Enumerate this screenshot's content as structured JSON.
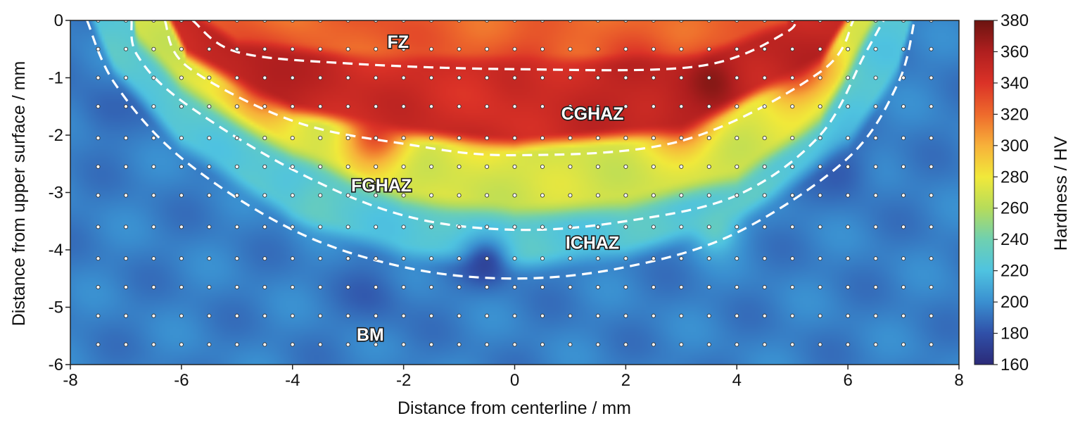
{
  "chart_data": {
    "type": "heatmap",
    "xlabel": "Distance from centerline / mm",
    "ylabel": "Distance from upper surface / mm",
    "colorbar_label": "Hardness / HV",
    "xlim": [
      -8,
      8
    ],
    "ylim": [
      -6,
      0
    ],
    "x_ticks": [
      -8,
      -6,
      -4,
      -2,
      0,
      2,
      4,
      6,
      8
    ],
    "y_ticks": [
      0,
      -1,
      -2,
      -3,
      -4,
      -5,
      -6
    ],
    "colorbar_range": [
      160,
      380
    ],
    "colorbar_ticks": [
      380,
      360,
      340,
      320,
      300,
      280,
      260,
      240,
      220,
      200,
      180,
      160
    ],
    "colormap": [
      "#2b2a78",
      "#3050a8",
      "#3a8fd0",
      "#4fc3e0",
      "#6fd0b0",
      "#b6dc5a",
      "#f1e93a",
      "#f7b13a",
      "#ee6a2c",
      "#db3227",
      "#b01f1f",
      "#6b1410"
    ],
    "base_hardness": 195,
    "measurement_grid": {
      "x_start": -7.5,
      "x_step": 0.5,
      "x_count": 31,
      "y_values": [
        0,
        -0.5,
        -1.0,
        -1.5,
        -2.05,
        -2.55,
        -3.05,
        -3.6,
        -4.15,
        -4.65,
        -5.15,
        -5.65
      ]
    },
    "zones": [
      {
        "label": "FZ",
        "x": -2.1,
        "y": -0.4
      },
      {
        "label": "CGHAZ",
        "x": 1.4,
        "y": -1.65
      },
      {
        "label": "FGHAZ",
        "x": -2.4,
        "y": -2.9
      },
      {
        "label": "ICHAZ",
        "x": 1.4,
        "y": -3.9
      },
      {
        "label": "BM",
        "x": -2.6,
        "y": -5.5
      }
    ],
    "boundaries": [
      {
        "name": "FZ / CGHAZ",
        "points": [
          [
            -5.8,
            0.0
          ],
          [
            -5.0,
            -0.55
          ],
          [
            -3.0,
            -0.75
          ],
          [
            0.0,
            -0.85
          ],
          [
            3.3,
            -0.8
          ],
          [
            4.9,
            -0.2
          ],
          [
            5.0,
            0.1
          ]
        ]
      },
      {
        "name": "CGHAZ / FGHAZ",
        "points": [
          [
            -6.3,
            0.0
          ],
          [
            -5.9,
            -0.8
          ],
          [
            -4.0,
            -1.75
          ],
          [
            -2.0,
            -2.15
          ],
          [
            0.0,
            -2.35
          ],
          [
            3.0,
            -2.1
          ],
          [
            5.5,
            -0.9
          ],
          [
            6.1,
            0.0
          ]
        ]
      },
      {
        "name": "FGHAZ / ICHAZ",
        "points": [
          [
            -6.9,
            0.0
          ],
          [
            -6.8,
            -0.6
          ],
          [
            -6.0,
            -1.4
          ],
          [
            -4.0,
            -2.6
          ],
          [
            -2.0,
            -3.4
          ],
          [
            0.0,
            -3.65
          ],
          [
            2.0,
            -3.5
          ],
          [
            4.0,
            -3.05
          ],
          [
            5.5,
            -2.0
          ],
          [
            6.3,
            -0.6
          ],
          [
            6.7,
            0.1
          ]
        ]
      },
      {
        "name": "ICHAZ / BM",
        "points": [
          [
            -7.7,
            0.0
          ],
          [
            -7.2,
            -1.1
          ],
          [
            -6.0,
            -2.4
          ],
          [
            -4.0,
            -3.65
          ],
          [
            -2.0,
            -4.3
          ],
          [
            0.0,
            -4.5
          ],
          [
            2.0,
            -4.3
          ],
          [
            4.0,
            -3.7
          ],
          [
            6.0,
            -2.4
          ],
          [
            6.9,
            -1.1
          ],
          [
            7.2,
            0.0
          ]
        ]
      }
    ],
    "hotspots": [
      {
        "x": -4.5,
        "y": -1.0,
        "hv": 365,
        "r": 0.45
      },
      {
        "x": 3.5,
        "y": -1.05,
        "hv": 372,
        "r": 0.35
      },
      {
        "x": 2.3,
        "y": -1.1,
        "hv": 355,
        "r": 0.45
      },
      {
        "x": 5.0,
        "y": -0.75,
        "hv": 358,
        "r": 0.45
      },
      {
        "x": 3.0,
        "y": -1.6,
        "hv": 358,
        "r": 0.4
      },
      {
        "x": -2.5,
        "y": -1.95,
        "hv": 345,
        "r": 0.4
      },
      {
        "x": -0.5,
        "y": -1.3,
        "hv": 340,
        "r": 0.5
      },
      {
        "x": 0.3,
        "y": -1.0,
        "hv": 345,
        "r": 0.45
      },
      {
        "x": -0.5,
        "y": -4.2,
        "hv": 172,
        "r": 0.3
      },
      {
        "x": -2.2,
        "y": 0.0,
        "hv": 330,
        "r": 0.6
      },
      {
        "x": 6.0,
        "y": -2.6,
        "hv": 182,
        "r": 0.35
      },
      {
        "x": 3.6,
        "y": -3.6,
        "hv": 240,
        "r": 0.3
      },
      {
        "x": -3.6,
        "y": -3.1,
        "hv": 238,
        "r": 0.3
      },
      {
        "x": -7.5,
        "y": -1.6,
        "hv": 185,
        "r": 0.35
      },
      {
        "x": -2.5,
        "y": -4.8,
        "hv": 185,
        "r": 0.4
      }
    ]
  }
}
